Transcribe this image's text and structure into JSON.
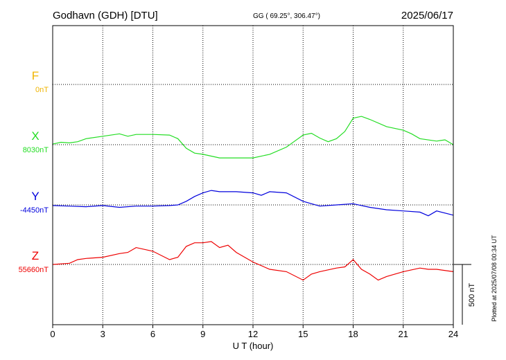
{
  "header": {
    "station": "Godhavn (GDH)  [DTU]",
    "coords": "GG ( 69.25°, 306.47°)",
    "date": "2025/06/17"
  },
  "footer": {
    "plotted": "Plotted at 2025/07/08 00:34 UT",
    "scale_label": "500 nT"
  },
  "chart_data": {
    "type": "line",
    "title": "Godhavn (GDH)  [DTU]",
    "xlabel": "U T (hour)",
    "xlim": [
      0,
      24
    ],
    "xticks": [
      "0",
      "3",
      "6",
      "9",
      "12",
      "15",
      "18",
      "21",
      "24"
    ],
    "grid": true,
    "scale_bar_nT": 500,
    "series": [
      {
        "name": "F",
        "baseline": "0nT",
        "color": "#f0b400",
        "x": [],
        "y": []
      },
      {
        "name": "X",
        "baseline": "8030nT",
        "color": "#22dd22",
        "x": [
          0,
          0.5,
          1.0,
          1.5,
          2.0,
          3.0,
          4.0,
          4.5,
          5.0,
          6.0,
          7.0,
          7.5,
          8.0,
          8.5,
          9.0,
          10.0,
          11.0,
          12.0,
          13.0,
          14.0,
          14.5,
          15.0,
          15.5,
          16.0,
          16.5,
          17.0,
          17.5,
          18.0,
          18.5,
          19.0,
          20.0,
          21.0,
          21.5,
          22.0,
          23.0,
          23.5,
          24.0
        ],
        "y": [
          8035,
          8050,
          8045,
          8055,
          8080,
          8100,
          8120,
          8100,
          8115,
          8115,
          8110,
          8080,
          8000,
          7960,
          7950,
          7920,
          7920,
          7920,
          7950,
          8010,
          8060,
          8110,
          8125,
          8085,
          8055,
          8080,
          8140,
          8250,
          8265,
          8240,
          8180,
          8150,
          8120,
          8080,
          8060,
          8070,
          8030
        ]
      },
      {
        "name": "Y",
        "baseline": "-4450nT",
        "color": "#0000dd",
        "x": [
          0,
          1,
          2,
          3,
          4,
          5,
          6,
          7,
          7.5,
          8,
          8.5,
          9,
          9.5,
          10,
          11,
          12,
          12.5,
          13,
          14,
          15,
          16,
          17,
          18,
          19,
          20,
          21,
          22,
          22.5,
          23,
          24
        ],
        "y": [
          -4455,
          -4460,
          -4465,
          -4455,
          -4470,
          -4460,
          -4460,
          -4455,
          -4450,
          -4420,
          -4380,
          -4350,
          -4330,
          -4340,
          -4340,
          -4350,
          -4370,
          -4340,
          -4350,
          -4420,
          -4460,
          -4450,
          -4440,
          -4470,
          -4490,
          -4500,
          -4510,
          -4540,
          -4500,
          -4535
        ]
      },
      {
        "name": "Z",
        "baseline": "55660nT",
        "color": "#ee0000",
        "x": [
          0,
          1,
          1.5,
          2,
          3,
          4,
          4.5,
          5,
          6,
          7,
          7.5,
          8,
          8.5,
          9,
          9.5,
          10,
          10.5,
          11,
          12,
          13,
          14,
          15,
          15.5,
          16,
          17,
          17.5,
          18,
          18.5,
          19,
          19.5,
          20,
          21,
          22,
          22.5,
          23,
          24
        ],
        "y": [
          55660,
          55670,
          55700,
          55710,
          55720,
          55750,
          55760,
          55800,
          55770,
          55700,
          55720,
          55810,
          55840,
          55840,
          55850,
          55800,
          55820,
          55760,
          55680,
          55620,
          55600,
          55530,
          55580,
          55600,
          55630,
          55640,
          55700,
          55620,
          55580,
          55530,
          55560,
          55600,
          55630,
          55620,
          55620,
          55600
        ]
      }
    ]
  }
}
